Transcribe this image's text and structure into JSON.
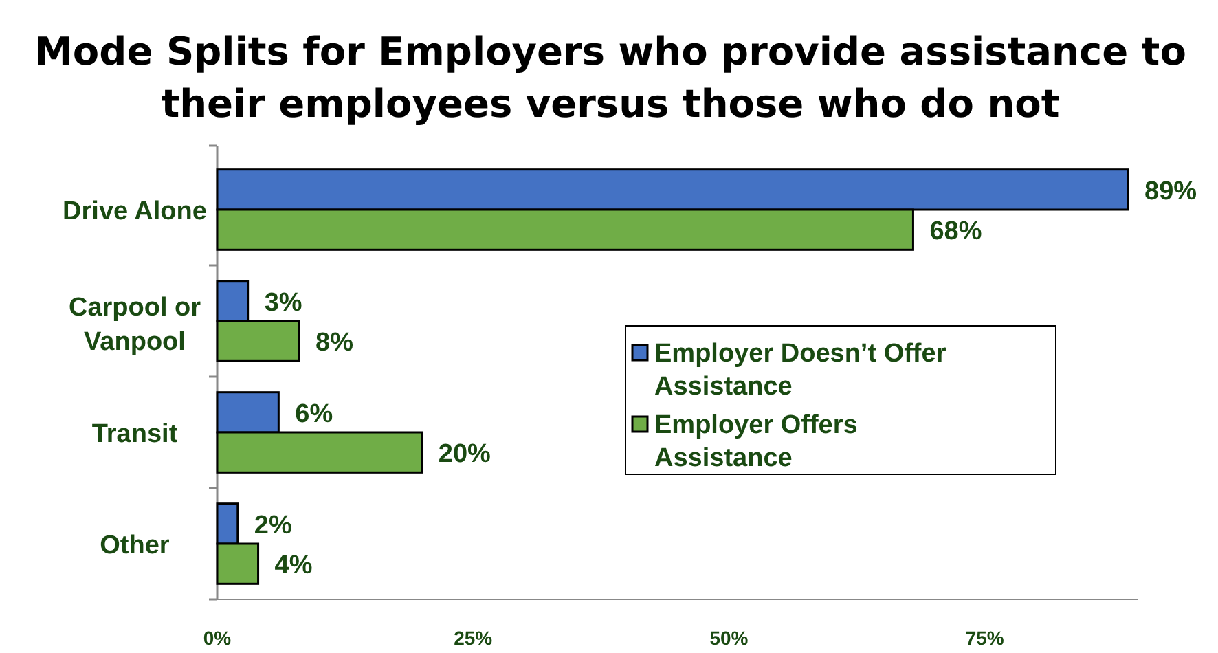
{
  "chart_data": {
    "type": "bar",
    "orientation": "horizontal",
    "title": "Mode Splits for Employers who provide assistance to their employees versus those who do not",
    "categories": [
      "Drive Alone",
      "Carpool or Vanpool",
      "Transit",
      "Other"
    ],
    "series": [
      {
        "name": "Employer Doesn’t Offer Assistance",
        "color": "#4472c4",
        "values": [
          89,
          3,
          6,
          2
        ],
        "value_labels": [
          "89%",
          "3%",
          "6%",
          "2%"
        ]
      },
      {
        "name": "Employer Offers Assistance",
        "color": "#70ad47",
        "values": [
          68,
          8,
          20,
          4
        ],
        "value_labels": [
          "68%",
          "8%",
          "20%",
          "4%"
        ]
      }
    ],
    "xlim": [
      0,
      90
    ],
    "xticks": [
      {
        "value": 0,
        "label": "0%"
      },
      {
        "value": 25,
        "label": "25%"
      },
      {
        "value": 50,
        "label": "50%"
      },
      {
        "value": 75,
        "label": "75%"
      }
    ],
    "grid": false,
    "legend": "right"
  }
}
